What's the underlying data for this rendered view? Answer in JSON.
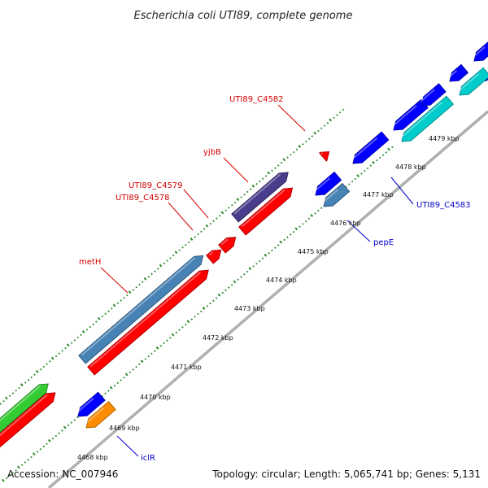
{
  "title": "Escherichia coli UTI89, complete genome",
  "footer": {
    "accession": "Accession: NC_007946",
    "summary": "Topology: circular; Length: 5,065,741 bp; Genes: 5,131"
  },
  "colors": {
    "backbone": "#8e8e8e",
    "tick": "#2e8b2e",
    "label_forward": "#d40000",
    "label_reverse": "#0000cc"
  },
  "kbp_labels": [
    "4468 kbp",
    "4469 kbp",
    "4470 kbp",
    "4471 kbp",
    "4472 kbp",
    "4473 kbp",
    "4474 kbp",
    "4475 kbp",
    "4476 kbp",
    "4477 kbp",
    "4478 kbp",
    "4479 kbp"
  ],
  "gene_labels": [
    "UTI89_C4582",
    "yjbB",
    "UTI89_C4579",
    "UTI89_C4578",
    "metH",
    "UTI89_C4583",
    "pepE",
    "iclR"
  ]
}
